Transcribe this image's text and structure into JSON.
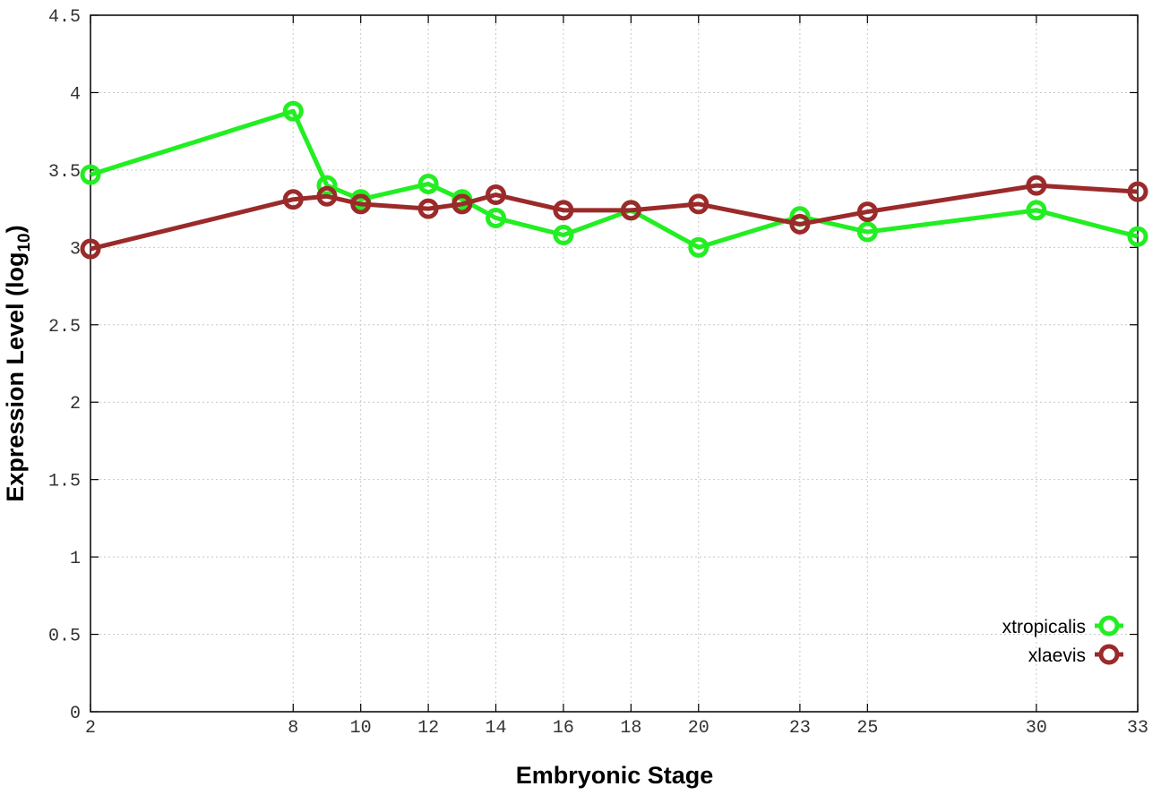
{
  "chart_data": {
    "type": "line",
    "title": "",
    "xlabel": "Embryonic Stage",
    "ylabel_main": "Expression Level (log",
    "ylabel_sub": "10",
    "ylabel_close": ")",
    "x": [
      2,
      8,
      9,
      10,
      12,
      13,
      14,
      16,
      18,
      20,
      23,
      25,
      30,
      33
    ],
    "x_ticks": [
      2,
      8,
      10,
      12,
      14,
      16,
      18,
      20,
      23,
      25,
      30,
      33
    ],
    "x_tick_labels": [
      "2",
      "8",
      "10",
      "12",
      "14",
      "16",
      "18",
      "20",
      "23",
      "25",
      "30",
      "33"
    ],
    "y_ticks": [
      0,
      0.5,
      1,
      1.5,
      2,
      2.5,
      3,
      3.5,
      4,
      4.5
    ],
    "y_tick_labels": [
      "0",
      "0.5",
      "1",
      "1.5",
      "2",
      "2.5",
      "3",
      "3.5",
      "4",
      "4.5"
    ],
    "xlim": [
      2,
      33
    ],
    "ylim": [
      0,
      4.5
    ],
    "grid": true,
    "legend_position": "bottom-right",
    "series": [
      {
        "name": "xtropicalis",
        "color": "#22ee22",
        "values": [
          3.47,
          3.88,
          3.4,
          3.31,
          3.41,
          3.31,
          3.19,
          3.08,
          3.24,
          3.0,
          3.2,
          3.1,
          3.24,
          3.07
        ]
      },
      {
        "name": "xlaevis",
        "color": "#9b2a2a",
        "values": [
          2.99,
          3.31,
          3.33,
          3.28,
          3.25,
          3.28,
          3.34,
          3.24,
          3.24,
          3.28,
          3.15,
          3.23,
          3.4,
          3.36
        ]
      }
    ]
  }
}
